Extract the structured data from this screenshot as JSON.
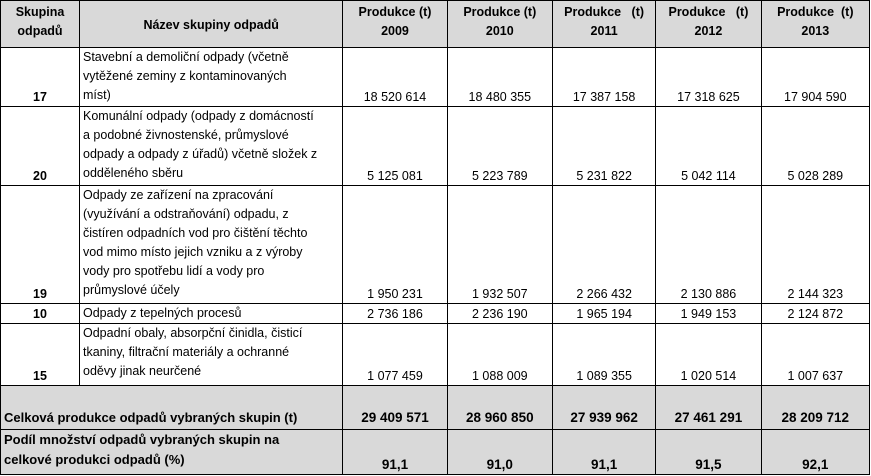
{
  "header": {
    "group_col": [
      "Skupina",
      "odpadů"
    ],
    "name_col": "Název skupiny odpadů",
    "years": [
      {
        "label": "Produkce (t)",
        "year": "2009"
      },
      {
        "label": "Produkce (t)",
        "year": "2010"
      },
      {
        "label": "Produkce   (t)",
        "year": "2011"
      },
      {
        "label": "Produkce   (t)",
        "year": "2012"
      },
      {
        "label": "Produkce  (t)",
        "year": "2013"
      }
    ]
  },
  "rows": [
    {
      "group": "17",
      "name_lines": [
        "Stavební a demoliční odpady (včetně",
        "vytěžené zeminy z kontaminovaných",
        "míst)"
      ],
      "values": [
        "18 520 614",
        "18 480 355",
        "17 387 158",
        "17 318 625",
        "17 904 590"
      ]
    },
    {
      "group": "20",
      "name_lines": [
        "Komunální odpady (odpady z domácností",
        "a podobné živnostenské, průmyslové",
        "odpady a odpady z úřadů) včetně složek z",
        "odděleného sběru"
      ],
      "values": [
        "5 125 081",
        "5 223 789",
        "5 231 822",
        "5 042 114",
        "5 028 289"
      ]
    },
    {
      "group": "19",
      "name_lines": [
        "Odpady ze zařízení na zpracování",
        "(využívání a odstraňování) odpadu, z",
        "čistíren odpadních vod pro čištění těchto",
        "vod mimo místo jejich vzniku a z výroby",
        "vody pro spotřebu lidí a vody pro",
        "průmyslové účely"
      ],
      "values": [
        "1 950 231",
        "1 932 507",
        "2 266 432",
        "2 130 886",
        "2 144 323"
      ]
    },
    {
      "group": "10",
      "name_lines": [
        "Odpady z tepelných procesů"
      ],
      "values": [
        "2 736 186",
        "2 236 190",
        "1 965 194",
        "1 949 153",
        "2 124 872"
      ]
    },
    {
      "group": "15",
      "name_lines": [
        "Odpadní obaly, absorpční činidla, čisticí",
        "tkaniny, filtrační materiály a ochranné",
        "oděvy jinak neurčené"
      ],
      "values": [
        "1 077 459",
        "1 088 009",
        "1 089 355",
        "1 020 514",
        "1 007 637"
      ]
    }
  ],
  "total": {
    "label": "Celková produkce odpadů vybraných skupin (t)",
    "values": [
      "29 409 571",
      "28 960 850",
      "27 939 962",
      "27 461 291",
      "28 209 712"
    ]
  },
  "share": {
    "label_lines": [
      "Podíl množství odpadů vybraných skupin na",
      "celkové produkci odpadů (%)"
    ],
    "values": [
      "91,1",
      "91,0",
      "91,1",
      "91,5",
      "92,1"
    ]
  }
}
